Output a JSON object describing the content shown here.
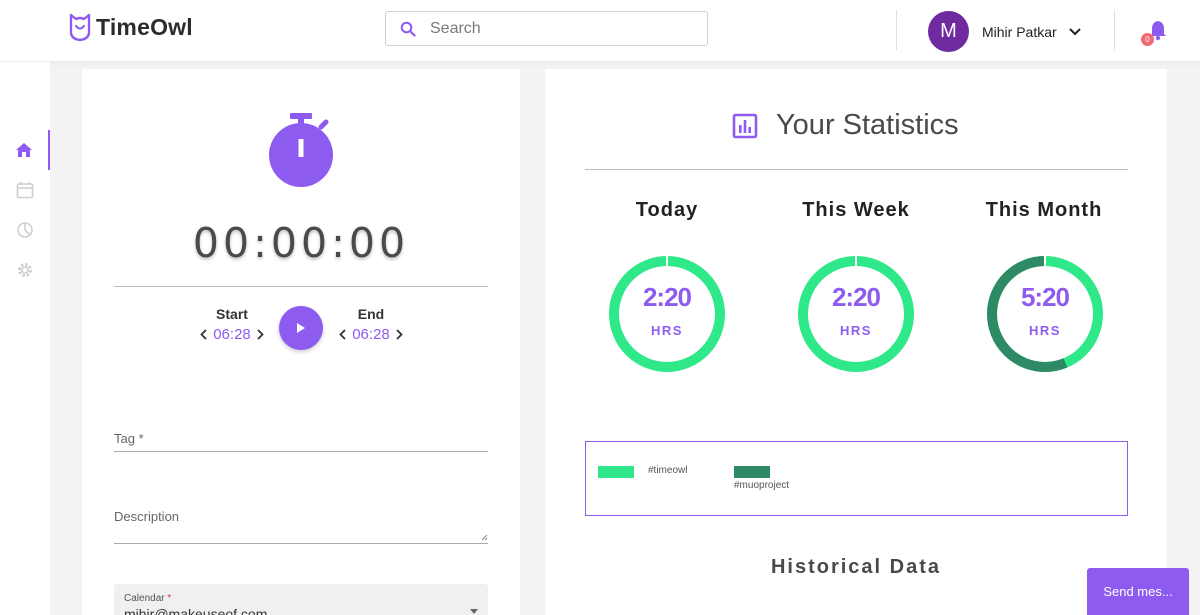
{
  "app": {
    "name": "TimeOwl"
  },
  "search": {
    "placeholder": "Search"
  },
  "user": {
    "initial": "M",
    "name": "Mihir Patkar",
    "avatar_color": "#6f2a9f"
  },
  "notifications": {
    "count": "0"
  },
  "sidebar": {
    "items": [
      {
        "name": "home",
        "active": true
      },
      {
        "name": "calendar",
        "active": false
      },
      {
        "name": "reports",
        "active": false
      },
      {
        "name": "settings",
        "active": false
      }
    ]
  },
  "timer": {
    "display": "00:00:00",
    "start_label": "Start",
    "start_time": "06:28",
    "end_label": "End",
    "end_time": "06:28"
  },
  "form": {
    "tag_label": "Tag *",
    "description_label": "Description",
    "calendar_label": "Calendar",
    "calendar_required": "*",
    "calendar_value": "mihir@makeuseof.com"
  },
  "stats": {
    "title": "Your Statistics",
    "today": {
      "label": "Today",
      "value": "2:20",
      "unit": "HRS"
    },
    "week": {
      "label": "This Week",
      "value": "2:20",
      "unit": "HRS"
    },
    "month": {
      "label": "This Month",
      "value": "5:20",
      "unit": "HRS"
    },
    "legend": [
      {
        "tag": "#timeowl",
        "color": "#2ee88a"
      },
      {
        "tag": "#muoproject",
        "color": "#2d8a64"
      }
    ],
    "month_split": {
      "timeowl_fraction": 0.4375,
      "muoproject_fraction": 0.5625
    },
    "historical_title": "Historical Data"
  },
  "chat": {
    "send_label": "Send mes..."
  },
  "colors": {
    "accent": "#8e5bf0",
    "green": "#2ee88a",
    "dark_green": "#2d8a64"
  }
}
